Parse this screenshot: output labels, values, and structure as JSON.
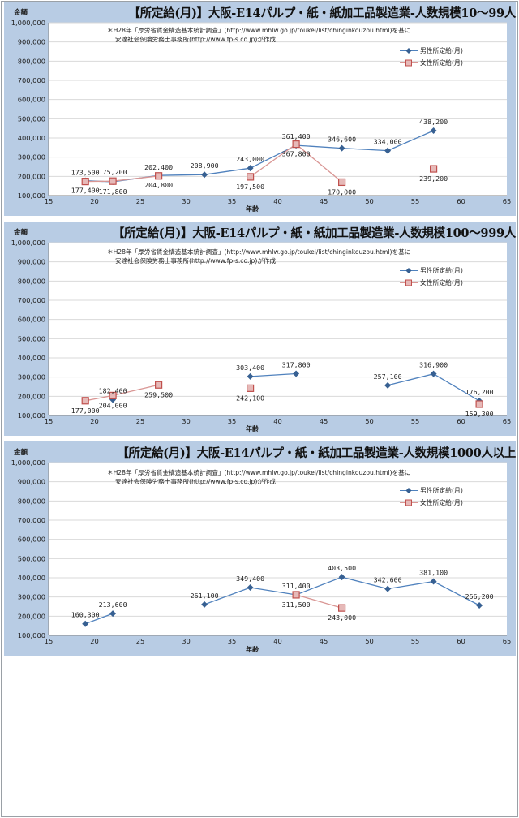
{
  "legend": {
    "male": "男性所定給(月)",
    "female": "女性所定給(月)"
  },
  "colors": {
    "band": "#b8cce4",
    "grid": "#d9d9d9",
    "male": "#376092",
    "female_fill": "#e6b9b8",
    "female_stroke": "#c0504d"
  },
  "charts": [
    {
      "title": "【所定給(月)】大阪-E14パルプ・紙・紙加工品製造業-人数規模10～99人",
      "ytitle": "金額",
      "xlabel": "年齢",
      "note": [
        "＊H28年「厚労省賃金構造基本統計調査」(http://www.mhlw.go.jp/toukei/list/chinginkouzou.html)を基に",
        "安達社会保険労務士事務所(http://www.fp-s.co.jp)が作成"
      ],
      "chart_data": {
        "type": "line",
        "xlim": [
          15,
          65
        ],
        "xticks": [
          15,
          20,
          25,
          30,
          35,
          40,
          45,
          50,
          55,
          60,
          65
        ],
        "ylim": [
          100000,
          1000000
        ],
        "yticks": [
          100000,
          200000,
          300000,
          400000,
          500000,
          600000,
          700000,
          800000,
          900000,
          1000000
        ],
        "ytick_labels": [
          "100,000",
          "200,000",
          "300,000",
          "400,000",
          "500,000",
          "600,000",
          "700,000",
          "800,000",
          "900,000",
          "1,000,000"
        ],
        "series": [
          {
            "name": "男性所定給(月)",
            "marker": "diamond",
            "segments": [
              [
                [
                  19,
                  177400
                ],
                [
                  22,
                  171800
                ],
                [
                  27,
                  204800
                ],
                [
                  32,
                  208900
                ],
                [
                  37,
                  243000
                ],
                [
                  42,
                  361400
                ],
                [
                  47,
                  346600
                ],
                [
                  52,
                  334000
                ],
                [
                  57,
                  438200
                ]
              ]
            ]
          },
          {
            "name": "女性所定給(月)",
            "marker": "square",
            "segments": [
              [
                [
                  19,
                  173500
                ],
                [
                  22,
                  175200
                ],
                [
                  27,
                  202400
                ]
              ],
              [
                [
                  37,
                  197500
                ],
                [
                  42,
                  367800
                ],
                [
                  47,
                  170000
                ]
              ],
              [
                [
                  57,
                  239200
                ]
              ]
            ]
          }
        ],
        "data_labels": [
          {
            "x": 19,
            "y": 177400,
            "text": "177,400",
            "pos": "below"
          },
          {
            "x": 22,
            "y": 171800,
            "text": "171,800",
            "pos": "below"
          },
          {
            "x": 27,
            "y": 204800,
            "text": "204,800",
            "pos": "below"
          },
          {
            "x": 32,
            "y": 208900,
            "text": "208,900",
            "pos": "above"
          },
          {
            "x": 37,
            "y": 243000,
            "text": "243,000",
            "pos": "above"
          },
          {
            "x": 42,
            "y": 361400,
            "text": "361,400",
            "pos": "above"
          },
          {
            "x": 47,
            "y": 346600,
            "text": "346,600",
            "pos": "above"
          },
          {
            "x": 52,
            "y": 334000,
            "text": "334,000",
            "pos": "above"
          },
          {
            "x": 57,
            "y": 438200,
            "text": "438,200",
            "pos": "above"
          },
          {
            "x": 19,
            "y": 173500,
            "text": "173,500",
            "pos": "above"
          },
          {
            "x": 22,
            "y": 175200,
            "text": "175,200",
            "pos": "above"
          },
          {
            "x": 27,
            "y": 202400,
            "text": "202,400",
            "pos": "above"
          },
          {
            "x": 37,
            "y": 197500,
            "text": "197,500",
            "pos": "below"
          },
          {
            "x": 42,
            "y": 367800,
            "text": "367,800",
            "pos": "below"
          },
          {
            "x": 47,
            "y": 170000,
            "text": "170,000",
            "pos": "below"
          },
          {
            "x": 57,
            "y": 239200,
            "text": "239,200",
            "pos": "below"
          }
        ]
      }
    },
    {
      "title": "【所定給(月)】大阪-E14パルプ・紙・紙加工品製造業-人数規模100～999人",
      "ytitle": "金額",
      "xlabel": "年齢",
      "note": [
        "＊H28年「厚労省賃金構造基本統計調査」(http://www.mhlw.go.jp/toukei/list/chinginkouzou.html)を基に",
        "安達社会保険労務士事務所(http://www.fp-s.co.jp)が作成"
      ],
      "chart_data": {
        "type": "line",
        "xlim": [
          15,
          65
        ],
        "xticks": [
          15,
          20,
          25,
          30,
          35,
          40,
          45,
          50,
          55,
          60,
          65
        ],
        "ylim": [
          100000,
          1000000
        ],
        "yticks": [
          100000,
          200000,
          300000,
          400000,
          500000,
          600000,
          700000,
          800000,
          900000,
          1000000
        ],
        "ytick_labels": [
          "100,000",
          "200,000",
          "300,000",
          "400,000",
          "500,000",
          "600,000",
          "700,000",
          "800,000",
          "900,000",
          "1,000,000"
        ],
        "series": [
          {
            "name": "男性所定給(月)",
            "marker": "diamond",
            "segments": [
              [
                [
                  22,
                  182400
                ]
              ],
              [
                [
                  37,
                  303400
                ],
                [
                  42,
                  317800
                ]
              ],
              [
                [
                  52,
                  257100
                ],
                [
                  57,
                  316900
                ],
                [
                  62,
                  176200
                ]
              ]
            ]
          },
          {
            "name": "女性所定給(月)",
            "marker": "square",
            "segments": [
              [
                [
                  19,
                  177000
                ],
                [
                  22,
                  204000
                ],
                [
                  27,
                  259500
                ]
              ],
              [
                [
                  37,
                  242100
                ]
              ],
              [
                [
                  62,
                  159300
                ]
              ]
            ]
          }
        ],
        "data_labels": [
          {
            "x": 22,
            "y": 182400,
            "text": "182,400",
            "pos": "above"
          },
          {
            "x": 37,
            "y": 303400,
            "text": "303,400",
            "pos": "above"
          },
          {
            "x": 42,
            "y": 317800,
            "text": "317,800",
            "pos": "above"
          },
          {
            "x": 52,
            "y": 257100,
            "text": "257,100",
            "pos": "above"
          },
          {
            "x": 57,
            "y": 316900,
            "text": "316,900",
            "pos": "above"
          },
          {
            "x": 62,
            "y": 176200,
            "text": "176,200",
            "pos": "above"
          },
          {
            "x": 19,
            "y": 177000,
            "text": "177,000",
            "pos": "below"
          },
          {
            "x": 22,
            "y": 204000,
            "text": "204,000",
            "pos": "below"
          },
          {
            "x": 27,
            "y": 259500,
            "text": "259,500",
            "pos": "below"
          },
          {
            "x": 37,
            "y": 242100,
            "text": "242,100",
            "pos": "below"
          },
          {
            "x": 62,
            "y": 159300,
            "text": "159,300",
            "pos": "below"
          }
        ]
      }
    },
    {
      "title": "【所定給(月)】大阪-E14パルプ・紙・紙加工品製造業-人数規模1000人以上",
      "ytitle": "金額",
      "xlabel": "年齢",
      "note": [
        "＊H28年「厚労省賃金構造基本統計調査」(http://www.mhlw.go.jp/toukei/list/chinginkouzou.html)を基に",
        "安達社会保険労務士事務所(http://www.fp-s.co.jp)が作成"
      ],
      "chart_data": {
        "type": "line",
        "xlim": [
          15,
          65
        ],
        "xticks": [
          15,
          20,
          25,
          30,
          35,
          40,
          45,
          50,
          55,
          60,
          65
        ],
        "ylim": [
          100000,
          1000000
        ],
        "yticks": [
          100000,
          200000,
          300000,
          400000,
          500000,
          600000,
          700000,
          800000,
          900000,
          1000000
        ],
        "ytick_labels": [
          "100,000",
          "200,000",
          "300,000",
          "400,000",
          "500,000",
          "600,000",
          "700,000",
          "800,000",
          "900,000",
          "1,000,000"
        ],
        "series": [
          {
            "name": "男性所定給(月)",
            "marker": "diamond",
            "segments": [
              [
                [
                  19,
                  160300
                ],
                [
                  22,
                  213600
                ]
              ],
              [
                [
                  32,
                  261100
                ],
                [
                  37,
                  349400
                ],
                [
                  42,
                  311400
                ],
                [
                  47,
                  403500
                ],
                [
                  52,
                  342600
                ],
                [
                  57,
                  381100
                ],
                [
                  62,
                  256200
                ]
              ]
            ]
          },
          {
            "name": "女性所定給(月)",
            "marker": "square",
            "segments": [
              [
                [
                  42,
                  311500
                ],
                [
                  47,
                  243000
                ]
              ]
            ]
          }
        ],
        "data_labels": [
          {
            "x": 19,
            "y": 160300,
            "text": "160,300",
            "pos": "above"
          },
          {
            "x": 22,
            "y": 213600,
            "text": "213,600",
            "pos": "above"
          },
          {
            "x": 32,
            "y": 261100,
            "text": "261,100",
            "pos": "above"
          },
          {
            "x": 37,
            "y": 349400,
            "text": "349,400",
            "pos": "above"
          },
          {
            "x": 42,
            "y": 311400,
            "text": "311,400",
            "pos": "above"
          },
          {
            "x": 47,
            "y": 403500,
            "text": "403,500",
            "pos": "above"
          },
          {
            "x": 52,
            "y": 342600,
            "text": "342,600",
            "pos": "above"
          },
          {
            "x": 57,
            "y": 381100,
            "text": "381,100",
            "pos": "above"
          },
          {
            "x": 62,
            "y": 256200,
            "text": "256,200",
            "pos": "above"
          },
          {
            "x": 42,
            "y": 311500,
            "text": "311,500",
            "pos": "below"
          },
          {
            "x": 47,
            "y": 243000,
            "text": "243,000",
            "pos": "below"
          }
        ]
      }
    }
  ]
}
